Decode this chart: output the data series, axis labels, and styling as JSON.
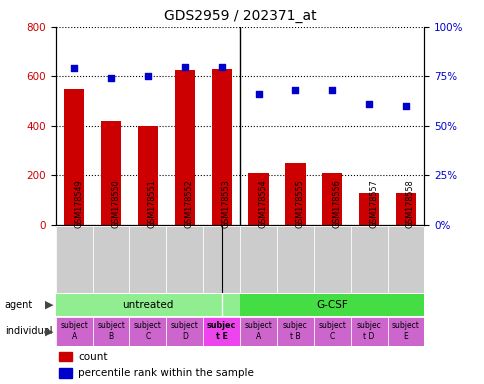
{
  "title": "GDS2959 / 202371_at",
  "samples": [
    "GSM178549",
    "GSM178550",
    "GSM178551",
    "GSM178552",
    "GSM178553",
    "GSM178554",
    "GSM178555",
    "GSM178556",
    "GSM178557",
    "GSM178558"
  ],
  "counts": [
    550,
    420,
    400,
    625,
    630,
    210,
    250,
    210,
    130,
    130
  ],
  "percentiles": [
    79,
    74,
    75,
    80,
    80,
    66,
    68,
    68,
    61,
    60
  ],
  "bar_color": "#CC0000",
  "scatter_color": "#0000CC",
  "ylim_left": [
    0,
    800
  ],
  "ylim_right": [
    0,
    100
  ],
  "yticks_left": [
    0,
    200,
    400,
    600,
    800
  ],
  "yticks_right": [
    0,
    25,
    50,
    75,
    100
  ],
  "group_untreated_color": "#90EE90",
  "group_gcfs_color": "#44DD44",
  "indiv_normal_color": "#CC66CC",
  "indiv_bold_color": "#EE44EE",
  "xtick_bg_color": "#CCCCCC",
  "title_fontsize": 10,
  "individuals": [
    {
      "label": "subject\nA",
      "bold": false
    },
    {
      "label": "subject\nB",
      "bold": false
    },
    {
      "label": "subject\nC",
      "bold": false
    },
    {
      "label": "subject\nD",
      "bold": false
    },
    {
      "label": "subjec\nt E",
      "bold": true
    },
    {
      "label": "subject\nA",
      "bold": false
    },
    {
      "label": "subjec\nt B",
      "bold": false
    },
    {
      "label": "subject\nC",
      "bold": false
    },
    {
      "label": "subjec\nt D",
      "bold": false
    },
    {
      "label": "subject\nE",
      "bold": false
    }
  ]
}
